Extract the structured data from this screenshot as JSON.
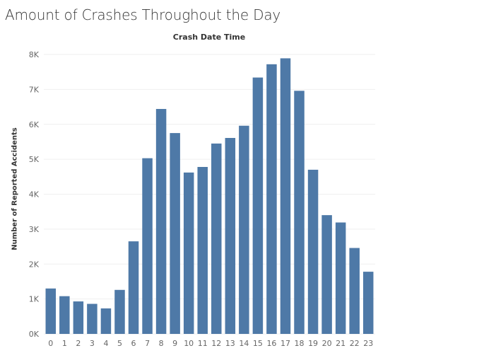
{
  "title": "Amount of Crashes Throughout the Day",
  "chart_data": {
    "type": "bar",
    "title": "Amount of Crashes Throughout the Day",
    "xlabel": "Crash Date Time",
    "ylabel": "Number of Reported Accidents",
    "categories": [
      "0",
      "1",
      "2",
      "3",
      "4",
      "5",
      "6",
      "7",
      "8",
      "9",
      "10",
      "11",
      "12",
      "13",
      "14",
      "15",
      "16",
      "17",
      "18",
      "19",
      "20",
      "21",
      "22",
      "23"
    ],
    "values": [
      1300,
      1080,
      930,
      860,
      730,
      1260,
      2650,
      5030,
      6440,
      5750,
      4620,
      4780,
      5450,
      5610,
      5960,
      7340,
      7720,
      7890,
      6960,
      4700,
      3400,
      3190,
      2460,
      1780
    ],
    "ylim": [
      0,
      8000
    ],
    "yticks": [
      0,
      1000,
      2000,
      3000,
      4000,
      5000,
      6000,
      7000,
      8000
    ],
    "ytick_labels": [
      "0K",
      "1K",
      "2K",
      "3K",
      "4K",
      "5K",
      "6K",
      "7K",
      "8K"
    ],
    "grid": true,
    "bar_color": "#4e79a7",
    "gridline_color": "#efefef"
  }
}
